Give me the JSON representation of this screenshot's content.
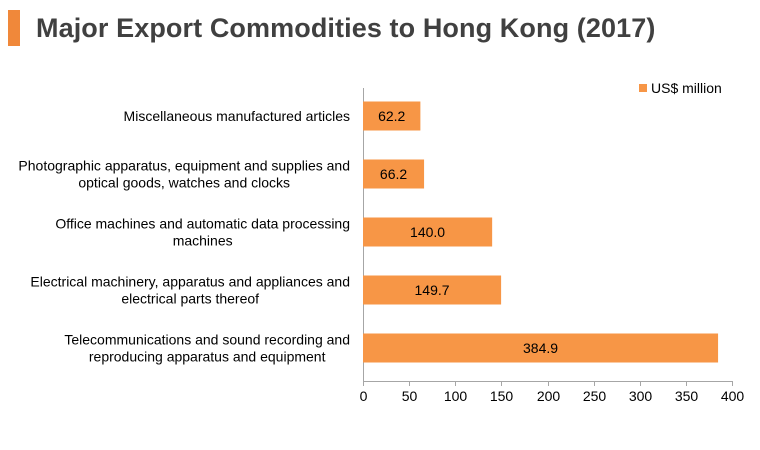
{
  "header": {
    "title": "Major Export Commodities to Hong Kong (2017)"
  },
  "colors": {
    "accent": "#f0883a",
    "bar": "#f79646",
    "axis": "#a6a6a6"
  },
  "chart_data": {
    "type": "bar",
    "orientation": "horizontal",
    "title": "Major Export Commodities to Hong Kong (2017)",
    "categories": [
      [
        "Miscellaneous manufactured articles"
      ],
      [
        "Photographic apparatus, equipment and supplies and",
        "optical goods, watches and clocks"
      ],
      [
        "Office machines and automatic data processing",
        "machines"
      ],
      [
        "Electrical machinery, apparatus and appliances  and",
        "electrical parts thereof"
      ],
      [
        "Telecommunications and sound recording and",
        "reproducing apparatus and equipment"
      ]
    ],
    "series": [
      {
        "name": "US$ million",
        "values": [
          62.2,
          66.2,
          140.0,
          149.7,
          384.9
        ],
        "labels": [
          "62.2",
          "66.2",
          "140.0",
          "149.7",
          "384.9"
        ]
      }
    ],
    "xlim": [
      0,
      400
    ],
    "xticks": [
      "0",
      "50",
      "100",
      "150",
      "200",
      "250",
      "300",
      "350",
      "400"
    ],
    "xlabel": "",
    "ylabel": "",
    "grid": false,
    "legend_position": "top-right"
  }
}
